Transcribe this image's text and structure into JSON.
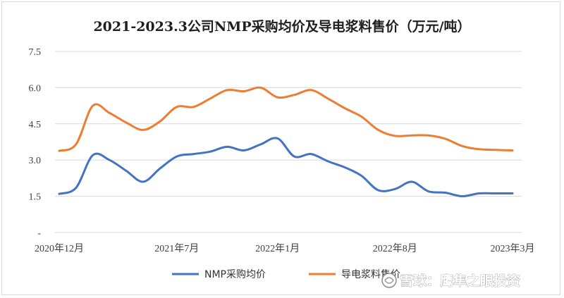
{
  "chart_data": {
    "type": "line",
    "title": "2021-2023.3公司NMP采购均价及导电浆料售价（万元/吨）",
    "xlabel": "",
    "ylabel": "",
    "ylim": [
      0,
      7.5
    ],
    "yticks": [
      "-",
      "1.5",
      "3.0",
      "4.5",
      "6.0",
      "7.5"
    ],
    "ytick_values": [
      0,
      1.5,
      3.0,
      4.5,
      6.0,
      7.5
    ],
    "xtick_labels": [
      "2020年12月",
      "2021年7月",
      "2022年1月",
      "2022年8月",
      "2023年3月"
    ],
    "xtick_indices": [
      0,
      7,
      13,
      20,
      27
    ],
    "grid": true,
    "legend_position": "bottom",
    "series": [
      {
        "name": "NMP采购均价",
        "color": "#4472c4",
        "values": [
          1.6,
          1.85,
          3.2,
          3.0,
          2.55,
          2.1,
          2.65,
          3.15,
          3.25,
          3.35,
          3.55,
          3.4,
          3.65,
          3.9,
          3.15,
          3.25,
          2.95,
          2.7,
          2.35,
          1.75,
          1.8,
          2.1,
          1.7,
          1.65,
          1.5,
          1.62,
          1.62,
          1.62
        ]
      },
      {
        "name": "导电浆料售价",
        "color": "#ed7d31",
        "values": [
          3.38,
          3.65,
          5.25,
          4.95,
          4.55,
          4.25,
          4.6,
          5.2,
          5.2,
          5.55,
          5.9,
          5.85,
          6.0,
          5.6,
          5.7,
          5.9,
          5.55,
          5.15,
          4.8,
          4.25,
          4.0,
          4.02,
          4.02,
          3.88,
          3.58,
          3.45,
          3.42,
          3.4
        ]
      }
    ]
  },
  "watermark": "雪球：鹰隼之眼投资"
}
